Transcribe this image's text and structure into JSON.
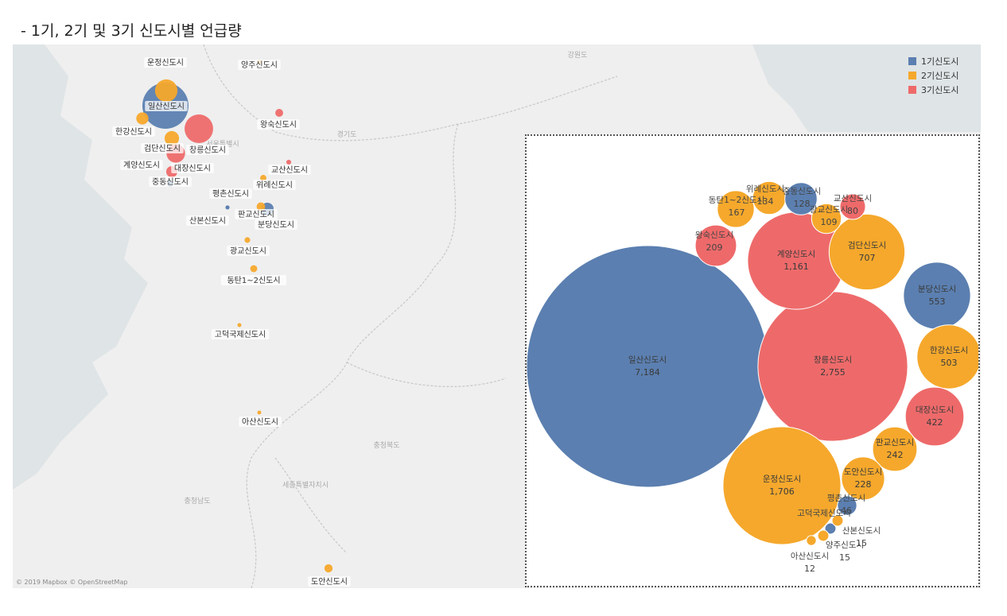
{
  "page_title": "- 1기, 2기 및 3기 신도시별 언급량",
  "colors": {
    "gen1": "#5b7fb0",
    "gen2": "#f5a82c",
    "gen3": "#ee6a6a",
    "map_land": "#efefef",
    "map_sea": "#dfe4e6",
    "map_border": "#c7c7c7"
  },
  "legend": {
    "items": [
      {
        "label": "1기신도시",
        "color": "#5b7fb0"
      },
      {
        "label": "2기신도시",
        "color": "#f5a82c"
      },
      {
        "label": "3기신도시",
        "color": "#ee6a6a"
      }
    ]
  },
  "map": {
    "attribution": "© 2019 Mapbox © OpenStreetMap",
    "region_labels": [
      "강원도",
      "경기도",
      "충청북도",
      "세종특별자치시",
      "충청남도",
      "서울특별시"
    ]
  },
  "chart_data": [
    {
      "type": "map-bubble",
      "title": "",
      "series": [
        {
          "name": "1기신도시",
          "color": "#5b7fb0"
        },
        {
          "name": "2기신도시",
          "color": "#f5a82c"
        },
        {
          "name": "3기신도시",
          "color": "#ee6a6a"
        }
      ],
      "points": [
        {
          "name": "양주신도시",
          "gen": 2,
          "value": 15
        },
        {
          "name": "운정신도시",
          "gen": 2,
          "value": 1706
        },
        {
          "name": "일산신도시",
          "gen": 1,
          "value": 7184
        },
        {
          "name": "한강신도시",
          "gen": 2,
          "value": 503
        },
        {
          "name": "검단신도시",
          "gen": 2,
          "value": 707
        },
        {
          "name": "창릉신도시",
          "gen": 3,
          "value": 2755
        },
        {
          "name": "계양신도시",
          "gen": 3,
          "value": 1161
        },
        {
          "name": "대장신도시",
          "gen": 3,
          "value": 422
        },
        {
          "name": "중동신도시",
          "gen": 1,
          "value": 128
        },
        {
          "name": "왕숙신도시",
          "gen": 3,
          "value": 209
        },
        {
          "name": "교산신도시",
          "gen": 3,
          "value": 80
        },
        {
          "name": "위례신도시",
          "gen": 2,
          "value": 134
        },
        {
          "name": "평촌신도시",
          "gen": 1,
          "value": 46
        },
        {
          "name": "판교신도시",
          "gen": 2,
          "value": 242
        },
        {
          "name": "분당신도시",
          "gen": 1,
          "value": 553
        },
        {
          "name": "산본신도시",
          "gen": 1,
          "value": 15
        },
        {
          "name": "광교신도시",
          "gen": 2,
          "value": 109
        },
        {
          "name": "동탄1~2신도시",
          "gen": 2,
          "value": 167
        },
        {
          "name": "고덕국제신도시",
          "gen": 2,
          "value": 15
        },
        {
          "name": "아산신도시",
          "gen": 2,
          "value": 12
        },
        {
          "name": "도안신도시",
          "gen": 2,
          "value": 228
        }
      ]
    },
    {
      "type": "packed-bubble",
      "title": "",
      "series": [
        {
          "name": "1기신도시",
          "color": "#5b7fb0"
        },
        {
          "name": "2기신도시",
          "color": "#f5a82c"
        },
        {
          "name": "3기신도시",
          "color": "#ee6a6a"
        }
      ],
      "bubbles": [
        {
          "name": "일산신도시",
          "gen": 1,
          "value": 7184,
          "value_label": "7,184"
        },
        {
          "name": "창릉신도시",
          "gen": 3,
          "value": 2755,
          "value_label": "2,755"
        },
        {
          "name": "운정신도시",
          "gen": 2,
          "value": 1706,
          "value_label": "1,706"
        },
        {
          "name": "계양신도시",
          "gen": 3,
          "value": 1161,
          "value_label": "1,161"
        },
        {
          "name": "검단신도시",
          "gen": 2,
          "value": 707,
          "value_label": "707"
        },
        {
          "name": "분당신도시",
          "gen": 1,
          "value": 553,
          "value_label": "553"
        },
        {
          "name": "한강신도시",
          "gen": 2,
          "value": 503,
          "value_label": "503"
        },
        {
          "name": "대장신도시",
          "gen": 3,
          "value": 422,
          "value_label": "422"
        },
        {
          "name": "판교신도시",
          "gen": 2,
          "value": 242,
          "value_label": "242"
        },
        {
          "name": "도안신도시",
          "gen": 2,
          "value": 228,
          "value_label": "228"
        },
        {
          "name": "왕숙신도시",
          "gen": 3,
          "value": 209,
          "value_label": "209"
        },
        {
          "name": "동탄1~2신도시",
          "gen": 2,
          "value": 167,
          "value_label": "167"
        },
        {
          "name": "위례신도시",
          "gen": 2,
          "value": 134,
          "value_label": "134"
        },
        {
          "name": "중동신도시",
          "gen": 1,
          "value": 128,
          "value_label": "128"
        },
        {
          "name": "광교신도시",
          "gen": 2,
          "value": 109,
          "value_label": "109"
        },
        {
          "name": "교산신도시",
          "gen": 3,
          "value": 80,
          "value_label": "80"
        },
        {
          "name": "평촌신도시",
          "gen": 1,
          "value": 46,
          "value_label": "46"
        },
        {
          "name": "산본신도시",
          "gen": 1,
          "value": 15,
          "value_label": "15"
        },
        {
          "name": "양주신도시",
          "gen": 2,
          "value": 15,
          "value_label": "15"
        },
        {
          "name": "고덕국제신도시",
          "gen": 2,
          "value": 15,
          "value_label": ""
        },
        {
          "name": "아산신도시",
          "gen": 2,
          "value": 12,
          "value_label": "12"
        }
      ]
    }
  ]
}
